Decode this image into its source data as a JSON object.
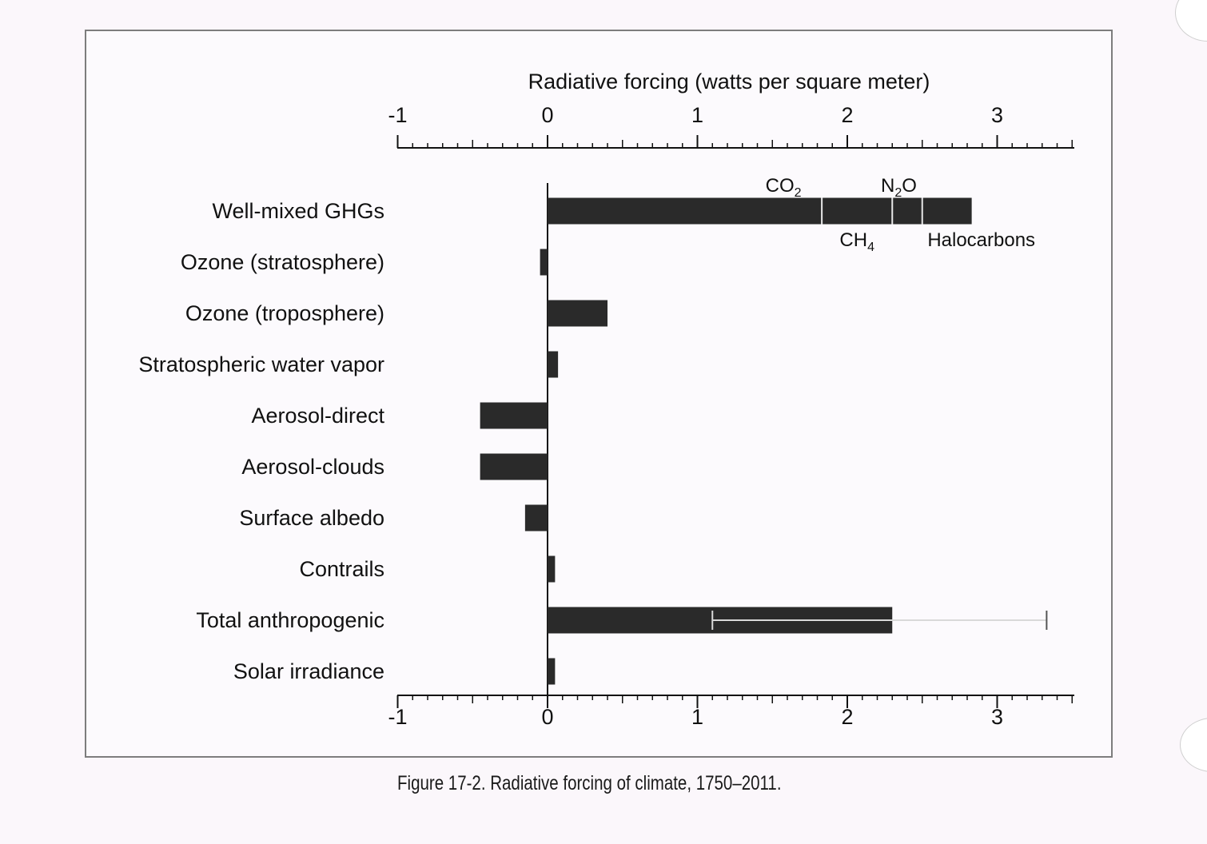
{
  "caption": "Figure 17-2. Radiative forcing of climate, 1750–2011.",
  "chart_data": {
    "type": "bar",
    "orientation": "horizontal",
    "title": "",
    "xlabel": "Radiative forcing (watts per square meter)",
    "ylabel": "",
    "xlim": [
      -1,
      3.5
    ],
    "xticks": [
      -1,
      0,
      1,
      2,
      3
    ],
    "xtick_labels": [
      "-1",
      "0",
      "1",
      "2",
      "3"
    ],
    "axis_placement": "top-and-bottom",
    "grid": false,
    "categories": [
      "Well-mixed GHGs",
      "Ozone (stratosphere)",
      "Ozone (troposphere)",
      "Stratospheric water vapor",
      "Aerosol-direct",
      "Aerosol-clouds",
      "Surface albedo",
      "Contrails",
      "Total anthropogenic",
      "Solar irradiance"
    ],
    "values": [
      2.83,
      -0.05,
      0.4,
      0.07,
      -0.45,
      -0.45,
      -0.15,
      0.05,
      2.3,
      0.05
    ],
    "bar_color": "#2a2a2a",
    "stacked_components": {
      "category": "Well-mixed GHGs",
      "segments": [
        {
          "base": "CO",
          "sub": "2",
          "value": 1.83,
          "label_position": "above"
        },
        {
          "base": "CH",
          "sub": "4",
          "value": 0.47,
          "label_position": "below"
        },
        {
          "base": "N",
          "sub": "2",
          "tail": "O",
          "value": 0.2,
          "label_position": "above"
        },
        {
          "base": "Halocarbons",
          "sub": "",
          "value": 0.33,
          "label_position": "below"
        }
      ]
    },
    "error_bars": [
      {
        "category": "Total anthropogenic",
        "low": 1.1,
        "high": 3.33
      }
    ]
  }
}
